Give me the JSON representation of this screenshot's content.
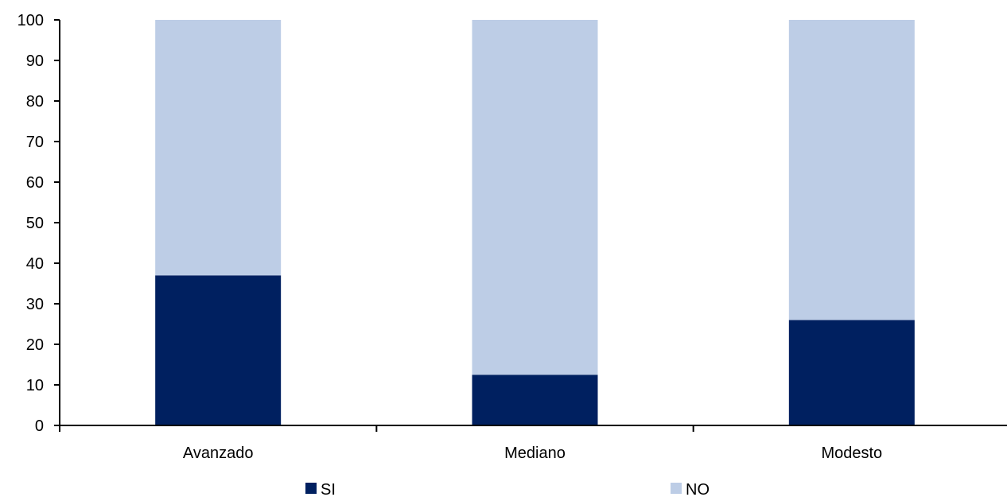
{
  "chart_data": {
    "type": "bar",
    "stacked": true,
    "categories": [
      "Avanzado",
      "Mediano",
      "Modesto"
    ],
    "series": [
      {
        "name": "SI",
        "values": [
          37,
          12.5,
          26
        ],
        "color": "#002060"
      },
      {
        "name": "NO",
        "values": [
          63,
          87.5,
          74
        ],
        "color": "#BDCDE6"
      }
    ],
    "ylim": [
      0,
      100
    ],
    "yticks": [
      0,
      10,
      20,
      30,
      40,
      50,
      60,
      70,
      80,
      90,
      100
    ],
    "xlabel": "",
    "ylabel": "",
    "title": "",
    "grid": false,
    "legend_position": "bottom"
  }
}
